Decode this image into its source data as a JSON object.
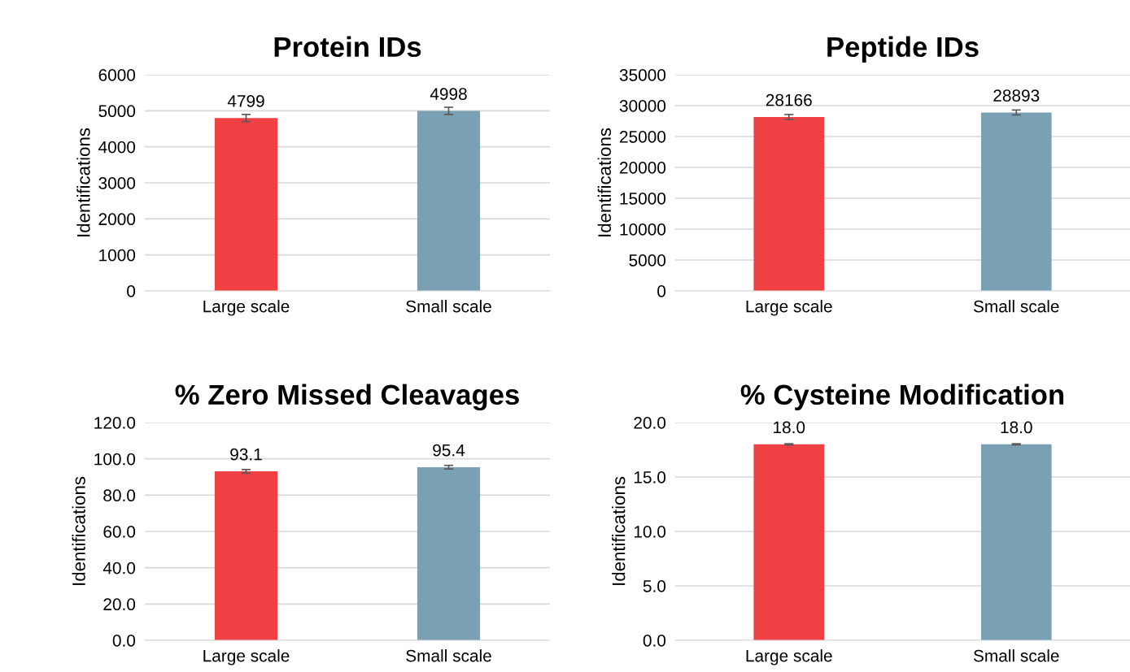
{
  "chart_data": [
    {
      "type": "bar",
      "title": "Protein IDs",
      "ylabel": "Identifications",
      "categories": [
        "Large scale",
        "Small scale"
      ],
      "values": [
        4799,
        4998
      ],
      "colors": [
        "#ef4044",
        "#7aa1b3"
      ],
      "errors": [
        100,
        100
      ],
      "ylim": [
        0,
        6000
      ],
      "yticks": [
        0,
        1000,
        2000,
        3000,
        4000,
        5000,
        6000
      ],
      "grid": "y",
      "data_labels": true
    },
    {
      "type": "bar",
      "title": "Peptide IDs",
      "ylabel": "Identifications",
      "categories": [
        "Large scale",
        "Small scale"
      ],
      "values": [
        28166,
        28893
      ],
      "colors": [
        "#ef4044",
        "#7aa1b3"
      ],
      "errors": [
        400,
        400
      ],
      "ylim": [
        0,
        35000
      ],
      "yticks": [
        0,
        5000,
        10000,
        15000,
        20000,
        25000,
        30000,
        35000
      ],
      "grid": "y",
      "data_labels": true
    },
    {
      "type": "bar",
      "title": "% Zero Missed Cleavages",
      "ylabel": "Identifications",
      "categories": [
        "Large scale",
        "Small scale"
      ],
      "values": [
        93.1,
        95.4
      ],
      "colors": [
        "#ef4044",
        "#7aa1b3"
      ],
      "errors": [
        1,
        1
      ],
      "ylim": [
        0,
        120
      ],
      "yticks": [
        {
          "value": 0,
          "label": "0.0"
        },
        {
          "value": 20,
          "label": "20.0"
        },
        {
          "value": 40,
          "label": "40.0"
        },
        {
          "value": 60,
          "label": "60.0"
        },
        {
          "value": 80,
          "label": "80.0"
        },
        {
          "value": 100,
          "label": "100.0"
        },
        {
          "value": 120,
          "label": "120.0"
        }
      ],
      "grid": "y",
      "value_labels": [
        "93.1",
        "95.4"
      ]
    },
    {
      "type": "bar",
      "title": "% Cysteine Modification",
      "ylabel": "Identifications",
      "categories": [
        "Large scale",
        "Small scale"
      ],
      "values": [
        18.0,
        18.0
      ],
      "colors": [
        "#ef4044",
        "#7aa1b3"
      ],
      "errors": [
        0.05,
        0.05
      ],
      "ylim": [
        0,
        20
      ],
      "yticks": [
        {
          "value": 0,
          "label": "0.0"
        },
        {
          "value": 5,
          "label": "5.0"
        },
        {
          "value": 10,
          "label": "10.0"
        },
        {
          "value": 15,
          "label": "15.0"
        },
        {
          "value": 20,
          "label": "20.0"
        }
      ],
      "grid": "y",
      "value_labels": [
        "18.0",
        "18.0"
      ]
    }
  ]
}
